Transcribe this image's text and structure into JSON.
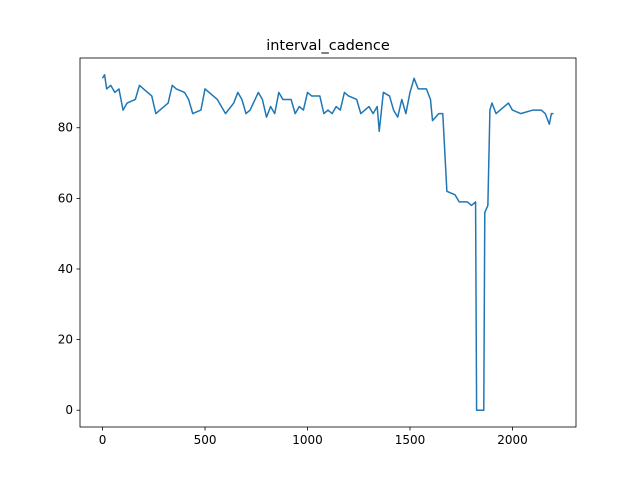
{
  "chart_data": {
    "type": "line",
    "title": "interval_cadence",
    "x": [
      0,
      10,
      20,
      40,
      60,
      80,
      100,
      120,
      160,
      180,
      200,
      240,
      260,
      300,
      320,
      340,
      360,
      400,
      420,
      440,
      480,
      500,
      520,
      560,
      580,
      600,
      640,
      660,
      680,
      700,
      720,
      760,
      780,
      800,
      820,
      840,
      860,
      880,
      920,
      940,
      960,
      980,
      1000,
      1020,
      1060,
      1080,
      1100,
      1120,
      1140,
      1160,
      1180,
      1200,
      1240,
      1260,
      1300,
      1320,
      1340,
      1350,
      1370,
      1400,
      1420,
      1440,
      1460,
      1480,
      1500,
      1520,
      1540,
      1580,
      1600,
      1610,
      1640,
      1660,
      1680,
      1720,
      1740,
      1780,
      1800,
      1820,
      1825,
      1860,
      1865,
      1880,
      1890,
      1900,
      1920,
      1980,
      2000,
      2040,
      2100,
      2140,
      2160,
      2180,
      2190,
      2200
    ],
    "series": [
      {
        "name": "interval_cadence",
        "color": "#1f77b4",
        "values": [
          94,
          95,
          91,
          92,
          90,
          91,
          85,
          87,
          88,
          92,
          91,
          89,
          84,
          86,
          87,
          92,
          91,
          90,
          88,
          84,
          85,
          91,
          90,
          88,
          86,
          84,
          87,
          90,
          88,
          84,
          85,
          90,
          88,
          83,
          86,
          84,
          90,
          88,
          88,
          84,
          86,
          85,
          90,
          89,
          89,
          84,
          85,
          84,
          86,
          85,
          90,
          89,
          88,
          84,
          86,
          84,
          86,
          79,
          90,
          89,
          85,
          83,
          88,
          84,
          90,
          94,
          91,
          91,
          88,
          82,
          84,
          84,
          62,
          61,
          59,
          59,
          58,
          59,
          0,
          0,
          56,
          58,
          85,
          87,
          84,
          87,
          85,
          84,
          85,
          85,
          84,
          81,
          84,
          84
        ]
      }
    ],
    "xlim": [
      -110,
      2310
    ],
    "xticks": [
      0,
      500,
      1000,
      1500,
      2000
    ],
    "ylim": [
      -4.75,
      99.75
    ],
    "yticks": [
      0,
      20,
      40,
      60,
      80
    ],
    "grid": false
  }
}
